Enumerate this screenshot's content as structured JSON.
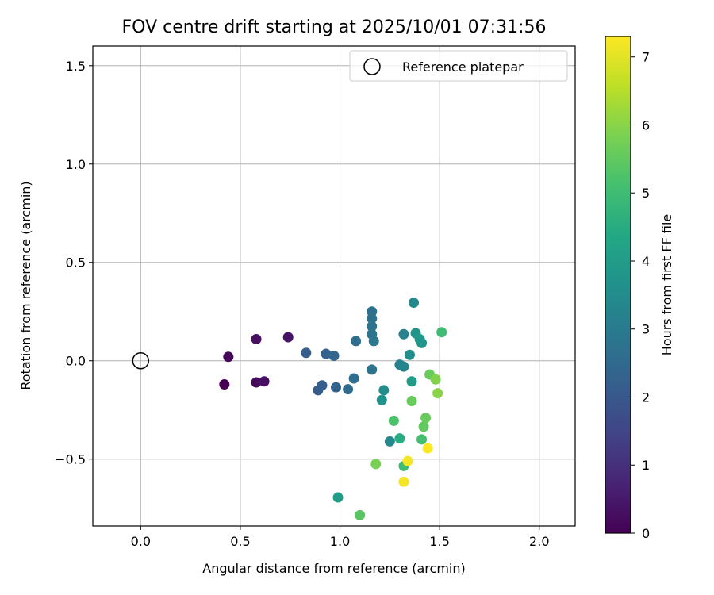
{
  "chart_data": {
    "type": "scatter",
    "title": "FOV centre drift starting at 2025/10/01 07:31:56",
    "xlabel": "Angular distance from reference (arcmin)",
    "ylabel": "Rotation from reference (arcmin)",
    "xlim": [
      -0.24,
      2.18
    ],
    "ylim": [
      -0.84,
      1.6
    ],
    "xticks": [
      0.0,
      0.5,
      1.0,
      1.5,
      2.0
    ],
    "xtick_labels": [
      "0.0",
      "0.5",
      "1.0",
      "1.5",
      "2.0"
    ],
    "yticks": [
      -0.5,
      0.0,
      0.5,
      1.0,
      1.5
    ],
    "ytick_labels": [
      "−0.5",
      "0.0",
      "0.5",
      "1.0",
      "1.5"
    ],
    "grid": true,
    "legend": {
      "position": "top-right",
      "label": "Reference platepar"
    },
    "reference_point": {
      "x": 0.0,
      "y": 0.0
    },
    "colorbar": {
      "label": "Hours from first FF file",
      "min": 0,
      "max": 7.3,
      "ticks": [
        0,
        1,
        2,
        3,
        4,
        5,
        6,
        7
      ],
      "tick_labels": [
        "0",
        "1",
        "2",
        "3",
        "4",
        "5",
        "6",
        "7"
      ],
      "colormap": "viridis"
    },
    "points": [
      {
        "x": 0.42,
        "y": -0.12,
        "hours": 0.0
      },
      {
        "x": 0.44,
        "y": 0.02,
        "hours": 0.1
      },
      {
        "x": 0.58,
        "y": 0.11,
        "hours": 0.3
      },
      {
        "x": 0.58,
        "y": -0.11,
        "hours": 0.2
      },
      {
        "x": 0.62,
        "y": -0.105,
        "hours": 0.3
      },
      {
        "x": 0.74,
        "y": 0.12,
        "hours": 0.4
      },
      {
        "x": 0.83,
        "y": 0.04,
        "hours": 2.2
      },
      {
        "x": 0.89,
        "y": -0.15,
        "hours": 2.1
      },
      {
        "x": 0.91,
        "y": -0.125,
        "hours": 2.2
      },
      {
        "x": 0.93,
        "y": 0.035,
        "hours": 2.3
      },
      {
        "x": 0.97,
        "y": 0.025,
        "hours": 2.4
      },
      {
        "x": 0.98,
        "y": -0.135,
        "hours": 2.3
      },
      {
        "x": 1.04,
        "y": -0.145,
        "hours": 2.5
      },
      {
        "x": 1.07,
        "y": -0.09,
        "hours": 2.6
      },
      {
        "x": 1.08,
        "y": 0.1,
        "hours": 2.6
      },
      {
        "x": 1.16,
        "y": 0.25,
        "hours": 2.7
      },
      {
        "x": 1.16,
        "y": 0.215,
        "hours": 2.7
      },
      {
        "x": 1.16,
        "y": 0.175,
        "hours": 2.8
      },
      {
        "x": 1.16,
        "y": 0.135,
        "hours": 2.8
      },
      {
        "x": 1.17,
        "y": 0.1,
        "hours": 2.9
      },
      {
        "x": 1.16,
        "y": -0.045,
        "hours": 2.8
      },
      {
        "x": 1.22,
        "y": -0.15,
        "hours": 3.5
      },
      {
        "x": 1.21,
        "y": -0.2,
        "hours": 3.7
      },
      {
        "x": 1.25,
        "y": -0.41,
        "hours": 3.4
      },
      {
        "x": 1.3,
        "y": -0.02,
        "hours": 3.2
      },
      {
        "x": 1.32,
        "y": -0.03,
        "hours": 3.3
      },
      {
        "x": 1.32,
        "y": 0.135,
        "hours": 3.2
      },
      {
        "x": 1.35,
        "y": 0.03,
        "hours": 3.6
      },
      {
        "x": 1.37,
        "y": 0.295,
        "hours": 3.4
      },
      {
        "x": 1.38,
        "y": 0.14,
        "hours": 3.7
      },
      {
        "x": 1.4,
        "y": 0.11,
        "hours": 3.9
      },
      {
        "x": 1.41,
        "y": 0.09,
        "hours": 3.8
      },
      {
        "x": 1.36,
        "y": -0.105,
        "hours": 4.0
      },
      {
        "x": 0.99,
        "y": -0.695,
        "hours": 4.0
      },
      {
        "x": 1.3,
        "y": -0.395,
        "hours": 4.5
      },
      {
        "x": 1.27,
        "y": -0.305,
        "hours": 5.2
      },
      {
        "x": 1.32,
        "y": -0.535,
        "hours": 5.0
      },
      {
        "x": 1.1,
        "y": -0.785,
        "hours": 5.4
      },
      {
        "x": 1.36,
        "y": -0.205,
        "hours": 5.6
      },
      {
        "x": 1.41,
        "y": -0.4,
        "hours": 5.1
      },
      {
        "x": 1.42,
        "y": -0.335,
        "hours": 5.5
      },
      {
        "x": 1.43,
        "y": -0.29,
        "hours": 5.6
      },
      {
        "x": 1.18,
        "y": -0.525,
        "hours": 5.8
      },
      {
        "x": 1.45,
        "y": -0.07,
        "hours": 5.6
      },
      {
        "x": 1.48,
        "y": -0.095,
        "hours": 5.9
      },
      {
        "x": 1.49,
        "y": -0.165,
        "hours": 6.0
      },
      {
        "x": 1.51,
        "y": 0.145,
        "hours": 5.0
      },
      {
        "x": 1.34,
        "y": -0.51,
        "hours": 7.2
      },
      {
        "x": 1.32,
        "y": -0.615,
        "hours": 7.2
      },
      {
        "x": 1.44,
        "y": -0.445,
        "hours": 7.3
      }
    ]
  }
}
